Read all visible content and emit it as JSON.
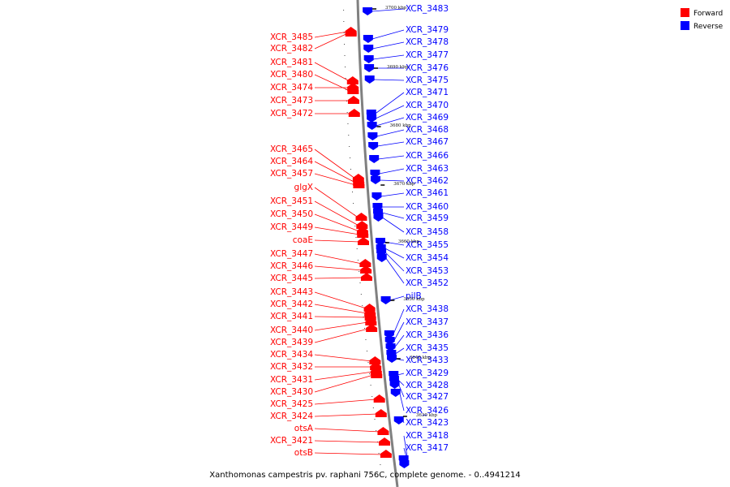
{
  "caption": "Xanthomonas campestris pv. raphani 756C, complete genome. - 0..4941214",
  "legend": [
    {
      "label": "Forward",
      "color": "#ff0000"
    },
    {
      "label": "Reverse",
      "color": "#0000ff"
    }
  ],
  "colors": {
    "forward": "#ff0000",
    "reverse": "#0000ff",
    "backbone": "#808080"
  },
  "ticks": [
    "3700 kbp",
    "3690 kbp",
    "3680 kbp",
    "3670 kbp",
    "3660 kbp",
    "3650 kbp",
    "3640 kbp",
    "3630 kbp"
  ],
  "forward_genes": [
    "XCR_3485",
    "XCR_3482",
    "XCR_3481",
    "XCR_3480",
    "XCR_3474",
    "XCR_3473",
    "XCR_3472",
    "XCR_3465",
    "XCR_3464",
    "XCR_3457",
    "glgX",
    "XCR_3451",
    "XCR_3450",
    "XCR_3449",
    "coaE",
    "XCR_3447",
    "XCR_3446",
    "XCR_3445",
    "XCR_3443",
    "XCR_3442",
    "XCR_3441",
    "XCR_3440",
    "XCR_3439",
    "XCR_3434",
    "XCR_3432",
    "XCR_3431",
    "XCR_3430",
    "XCR_3425",
    "XCR_3424",
    "otsA",
    "XCR_3421",
    "otsB"
  ],
  "reverse_genes": [
    "XCR_3483",
    "XCR_3479",
    "XCR_3478",
    "XCR_3477",
    "XCR_3476",
    "XCR_3475",
    "XCR_3471",
    "XCR_3470",
    "XCR_3469",
    "XCR_3468",
    "XCR_3467",
    "XCR_3466",
    "XCR_3463",
    "XCR_3462",
    "XCR_3461",
    "XCR_3460",
    "XCR_3459",
    "XCR_3458",
    "XCR_3455",
    "XCR_3454",
    "XCR_3453",
    "XCR_3452",
    "pilB",
    "XCR_3438",
    "XCR_3437",
    "XCR_3436",
    "XCR_3435",
    "XCR_3433",
    "XCR_3429",
    "XCR_3428",
    "XCR_3427",
    "XCR_3426",
    "XCR_3423",
    "XCR_3418",
    "XCR_3417"
  ]
}
